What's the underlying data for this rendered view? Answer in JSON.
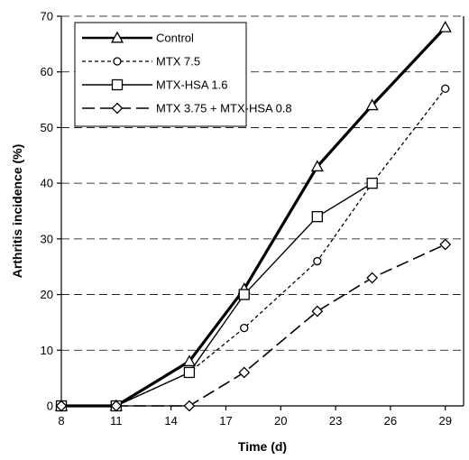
{
  "chart_data": {
    "type": "line",
    "title": "",
    "xlabel": "Time (d)",
    "ylabel": "Arthritis incidence (%)",
    "x_ticks": [
      8,
      11,
      14,
      17,
      20,
      23,
      26,
      29
    ],
    "y_ticks": [
      0,
      10,
      20,
      30,
      40,
      50,
      60,
      70
    ],
    "xlim": [
      8,
      30
    ],
    "ylim": [
      0,
      70
    ],
    "grid": "horizontal dashed",
    "legend_position": "top-left",
    "series": [
      {
        "name": "Control",
        "marker": "triangle",
        "line_style": "solid-thick",
        "color": "#000000",
        "x": [
          8,
          11,
          15,
          18,
          22,
          25,
          29
        ],
        "y": [
          0,
          0,
          8,
          21,
          43,
          54,
          68
        ]
      },
      {
        "name": "MTX 7.5",
        "marker": "circle",
        "line_style": "dotted",
        "color": "#000000",
        "x": [
          8,
          11,
          15,
          18,
          22,
          25,
          29
        ],
        "y": [
          0,
          0,
          6,
          14,
          26,
          40,
          57
        ]
      },
      {
        "name": "MTX-HSA 1.6",
        "marker": "square",
        "line_style": "solid",
        "color": "#000000",
        "x": [
          8,
          11,
          15,
          18,
          22,
          25
        ],
        "y": [
          0,
          0,
          6,
          20,
          34,
          40
        ]
      },
      {
        "name": "MTX 3.75 + MTX-HSA 0.8",
        "marker": "diamond",
        "line_style": "long-dash",
        "color": "#000000",
        "x": [
          8,
          11,
          15,
          18,
          22,
          25,
          29
        ],
        "y": [
          0,
          0,
          0,
          6,
          17,
          23,
          29
        ]
      }
    ]
  }
}
